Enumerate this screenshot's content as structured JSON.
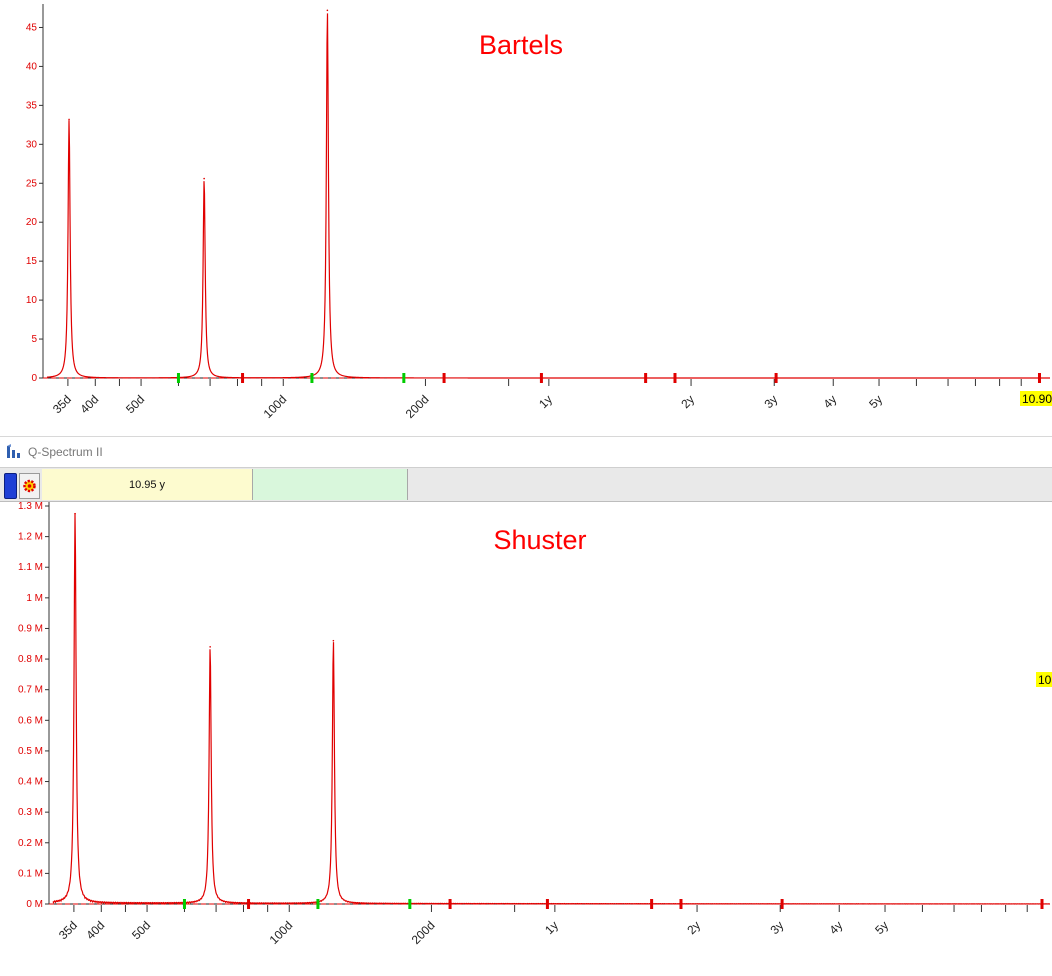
{
  "window": {
    "title": "Q-Spectrum II"
  },
  "toolbar": {
    "period_value": "10.95 y"
  },
  "colors": {
    "series": "#e00000",
    "accent_title": "#ff0000",
    "marker_red": "#e00000",
    "marker_green": "#00cc00",
    "badge": "#ffff00"
  },
  "chart_data": [
    {
      "type": "line",
      "title": "Bartels",
      "x_scale": "log",
      "x_unit": "days",
      "xlim": [
        31,
        4000
      ],
      "ylim": [
        0,
        47.5
      ],
      "yticks": [
        0,
        5,
        10,
        15,
        20,
        25,
        30,
        35,
        40,
        45
      ],
      "ytick_labels": [
        "0",
        "5",
        "10",
        "15",
        "20",
        "25",
        "30",
        "35",
        "40",
        "45"
      ],
      "xtick_labels": [
        {
          "label": "35d",
          "x": 35
        },
        {
          "label": "40d",
          "x": 40
        },
        {
          "label": "50d",
          "x": 50
        },
        {
          "label": "100d",
          "x": 100
        },
        {
          "label": "200d",
          "x": 200
        },
        {
          "label": "1y",
          "x": 365
        },
        {
          "label": "2y",
          "x": 730
        },
        {
          "label": "3y",
          "x": 1095
        },
        {
          "label": "4y",
          "x": 1460
        },
        {
          "label": "5y",
          "x": 1825
        }
      ],
      "peaks": [
        {
          "x": 35.2,
          "y": 33.2
        },
        {
          "x": 68.0,
          "y": 25.6
        },
        {
          "x": 124.0,
          "y": 47.2
        }
      ],
      "red_markers": [
        82,
        219,
        352,
        585,
        675,
        1105,
        3990
      ],
      "green_markers": [
        60,
        115,
        180
      ],
      "badge_label": "10.90"
    },
    {
      "type": "line",
      "title": "Shuster",
      "x_scale": "log",
      "x_unit": "days",
      "xlim": [
        31,
        4000
      ],
      "ylim": [
        0,
        1300000
      ],
      "yticks": [
        0,
        100000,
        200000,
        300000,
        400000,
        500000,
        600000,
        700000,
        800000,
        900000,
        1000000,
        1100000,
        1200000,
        1300000
      ],
      "ytick_labels": [
        "0 M",
        "0.1 M",
        "0.2 M",
        "0.3 M",
        "0.4 M",
        "0.5 M",
        "0.6 M",
        "0.7 M",
        "0.8 M",
        "0.9 M",
        "1 M",
        "1.1 M",
        "1.2 M",
        "1.3 M"
      ],
      "xtick_labels": [
        {
          "label": "35d",
          "x": 35
        },
        {
          "label": "40d",
          "x": 40
        },
        {
          "label": "50d",
          "x": 50
        },
        {
          "label": "100d",
          "x": 100
        },
        {
          "label": "200d",
          "x": 200
        },
        {
          "label": "1y",
          "x": 365
        },
        {
          "label": "2y",
          "x": 730
        },
        {
          "label": "3y",
          "x": 1095
        },
        {
          "label": "4y",
          "x": 1460
        },
        {
          "label": "5y",
          "x": 1825
        }
      ],
      "peaks": [
        {
          "x": 35.2,
          "y": 1275000
        },
        {
          "x": 68.0,
          "y": 840000
        },
        {
          "x": 124.0,
          "y": 860000
        }
      ],
      "red_markers": [
        82,
        219,
        352,
        585,
        675,
        1105,
        3990
      ],
      "green_markers": [
        60,
        115,
        180
      ],
      "badge_label": "10"
    }
  ]
}
